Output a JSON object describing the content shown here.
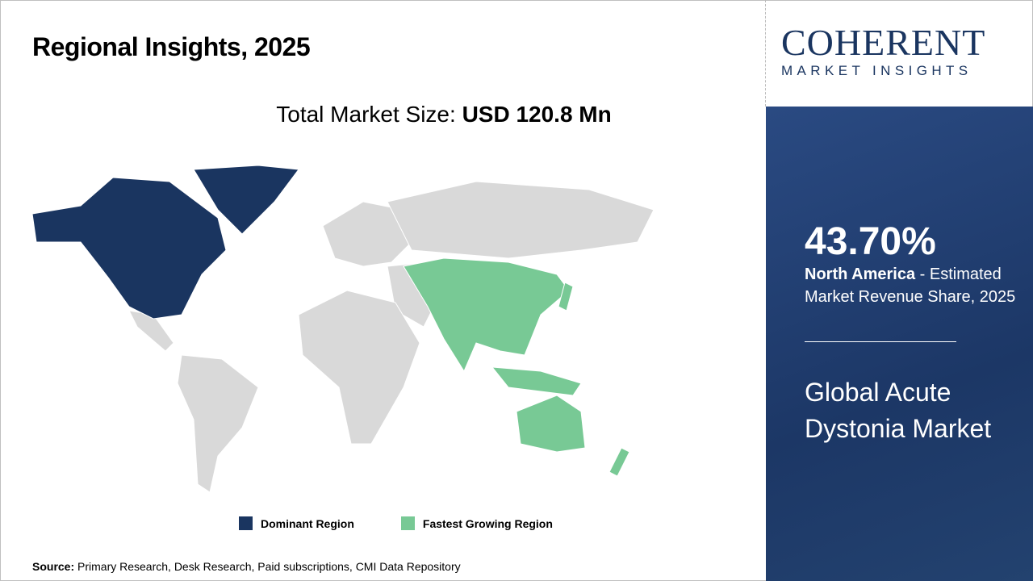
{
  "title": "Regional Insights, 2025",
  "total_label": "Total Market Size: ",
  "total_value": "USD 120.8 Mn",
  "legend": [
    {
      "label": "Dominant Region",
      "color": "#1a3560"
    },
    {
      "label": "Fastest Growing Region",
      "color": "#78c995"
    }
  ],
  "map_colors": {
    "other": "#d9d9d9",
    "dominant": "#1a3560",
    "fastest": "#78c995"
  },
  "source_label": "Source:",
  "source_text": " Primary Research, Desk Research, Paid subscriptions, CMI Data Repository",
  "logo": {
    "line1": "COHERENT",
    "line2": "MARKET INSIGHTS"
  },
  "side": {
    "percent": "43.70%",
    "region": "North America",
    "desc": " - Estimated Market Revenue Share, 2025",
    "market": "Global Acute Dystonia Market"
  }
}
